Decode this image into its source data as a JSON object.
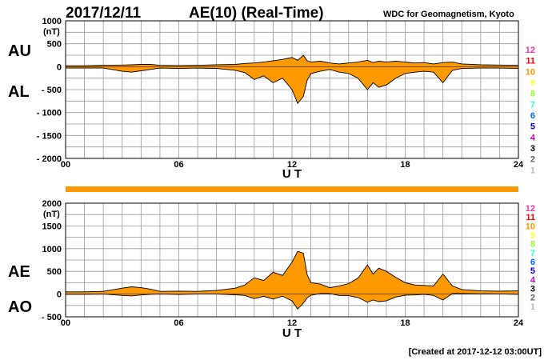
{
  "header": {
    "date": "2017/12/11",
    "title": "AE(10) (Real-Time)",
    "source": "WDC for Geomagnetism, Kyoto"
  },
  "footer": {
    "created": "[Created at 2017-12-12 03:00UT]"
  },
  "colors": {
    "fill": "#ff9900",
    "grid": "#9a9a9a",
    "station_colors": [
      "#ff3399",
      "#ff0000",
      "#ff9900",
      "#ffff33",
      "#99ff33",
      "#33ffcc",
      "#0066ff",
      "#0000cc",
      "#cc00cc",
      "#000000",
      "#666666",
      "#bbbbbb"
    ]
  },
  "stations": [
    "12",
    "11",
    "10",
    "9",
    "8",
    "7",
    "6",
    "5",
    "4",
    "3",
    "2",
    "1"
  ],
  "chart_data": [
    {
      "type": "area",
      "id": "au-al",
      "unit": "(nT)",
      "series": [
        {
          "name": "AU",
          "label": "AU",
          "x": [
            0,
            1,
            2,
            3,
            3.5,
            4,
            4.5,
            5,
            6,
            7,
            8,
            9,
            9.5,
            10,
            10.5,
            11,
            11.5,
            12,
            12.3,
            12.6,
            12.8,
            13,
            13.5,
            14,
            14.5,
            15,
            15.5,
            16,
            16.3,
            16.6,
            17,
            17.5,
            18,
            18.5,
            19,
            19.5,
            20,
            20.5,
            21,
            22,
            23,
            24
          ],
          "values": [
            20,
            20,
            30,
            35,
            40,
            50,
            50,
            30,
            25,
            30,
            40,
            50,
            70,
            80,
            100,
            130,
            160,
            200,
            140,
            250,
            130,
            100,
            120,
            80,
            60,
            80,
            100,
            140,
            90,
            120,
            100,
            120,
            100,
            80,
            90,
            60,
            90,
            100,
            60,
            40,
            35,
            30
          ]
        },
        {
          "name": "AL",
          "label": "AL",
          "x": [
            0,
            1,
            2,
            3,
            3.5,
            4,
            4.5,
            5,
            6,
            7,
            8,
            9,
            9.5,
            10,
            10.5,
            11,
            11.5,
            12,
            12.3,
            12.6,
            12.8,
            13,
            13.5,
            14,
            14.5,
            15,
            15.5,
            16,
            16.3,
            16.6,
            17,
            17.5,
            18,
            18.5,
            19,
            19.5,
            20,
            20.5,
            21,
            22,
            23,
            24
          ],
          "values": [
            -30,
            -30,
            -30,
            -100,
            -120,
            -90,
            -60,
            -30,
            -40,
            -30,
            -40,
            -80,
            -130,
            -280,
            -200,
            -350,
            -250,
            -500,
            -800,
            -650,
            -300,
            -150,
            -100,
            -60,
            -120,
            -150,
            -250,
            -500,
            -350,
            -450,
            -400,
            -250,
            -150,
            -120,
            -100,
            -120,
            -350,
            -80,
            -40,
            -30,
            -30,
            -40
          ]
        }
      ],
      "xlabel": "U T",
      "xticks": [
        "00",
        "06",
        "12",
        "18",
        "24"
      ],
      "xlim": [
        0,
        24
      ],
      "ylim": [
        -2000,
        1000
      ],
      "yticks": [
        1000,
        500,
        0,
        -500,
        -1000,
        -1500,
        -2000
      ],
      "ytick_labels": [
        "1000",
        "500",
        "0",
        "- 500",
        "- 1000",
        "- 1500",
        "- 2000"
      ]
    },
    {
      "type": "area",
      "id": "ae-ao",
      "unit": "(nT)",
      "series": [
        {
          "name": "AE",
          "label": "AE",
          "x": [
            0,
            1,
            2,
            3,
            3.5,
            4,
            4.5,
            5,
            6,
            7,
            8,
            9,
            9.5,
            10,
            10.5,
            11,
            11.5,
            12,
            12.3,
            12.6,
            12.8,
            13,
            13.5,
            14,
            14.5,
            15,
            15.5,
            16,
            16.3,
            16.6,
            17,
            17.5,
            18,
            18.5,
            19,
            19.5,
            20,
            20.5,
            21,
            22,
            23,
            24
          ],
          "values": [
            50,
            50,
            60,
            130,
            160,
            140,
            110,
            60,
            65,
            60,
            80,
            130,
            200,
            360,
            300,
            480,
            410,
            700,
            940,
            900,
            430,
            250,
            220,
            140,
            180,
            230,
            350,
            640,
            440,
            570,
            500,
            370,
            250,
            200,
            190,
            180,
            440,
            180,
            100,
            70,
            65,
            70
          ]
        },
        {
          "name": "AO",
          "label": "AO",
          "x": [
            0,
            1,
            2,
            3,
            3.5,
            4,
            4.5,
            5,
            6,
            7,
            8,
            9,
            9.5,
            10,
            10.5,
            11,
            11.5,
            12,
            12.3,
            12.6,
            12.8,
            13,
            13.5,
            14,
            14.5,
            15,
            15.5,
            16,
            16.3,
            16.6,
            17,
            17.5,
            18,
            18.5,
            19,
            19.5,
            20,
            20.5,
            21,
            22,
            23,
            24
          ],
          "values": [
            -5,
            -5,
            0,
            -30,
            -40,
            -20,
            -5,
            0,
            -8,
            0,
            0,
            -15,
            -30,
            -100,
            -50,
            -110,
            -45,
            -150,
            -330,
            -200,
            -85,
            -25,
            10,
            10,
            -30,
            -35,
            -75,
            -180,
            -130,
            -165,
            -150,
            -65,
            -25,
            -20,
            -5,
            -30,
            -130,
            10,
            10,
            5,
            3,
            -5
          ]
        }
      ],
      "xlabel": "U T",
      "xticks": [
        "00",
        "06",
        "12",
        "18",
        "24"
      ],
      "xlim": [
        0,
        24
      ],
      "ylim": [
        -500,
        2000
      ],
      "yticks": [
        2000,
        1500,
        1000,
        500,
        0,
        -500
      ],
      "ytick_labels": [
        "2000",
        "1500",
        "1000",
        "500",
        "0",
        "- 500"
      ]
    }
  ]
}
